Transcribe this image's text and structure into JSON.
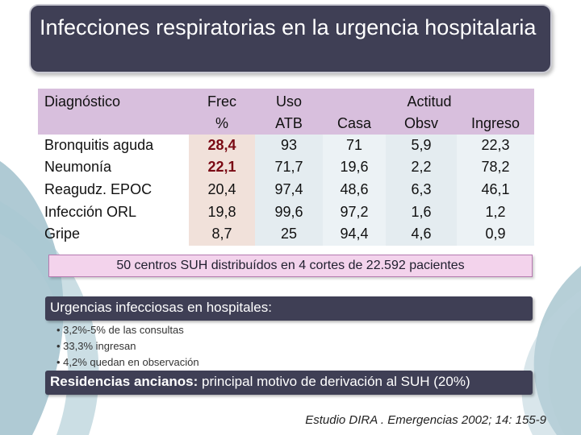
{
  "title": "Infecciones respiratorias en la urgencia hospitalaria",
  "table": {
    "headers": {
      "diagnostico": "Diagnóstico",
      "frec_1": "Frec",
      "frec_2": "%",
      "uso_1": "Uso",
      "uso_2": "ATB",
      "casa": "Casa",
      "actitud": "Actitud",
      "obsv": "Obsv",
      "ingreso": "Ingreso"
    },
    "rows": [
      {
        "label": "Bronquitis aguda",
        "frec": "28,4",
        "uso": "93",
        "casa": "71",
        "obsv": "5,9",
        "ingreso": "22,3"
      },
      {
        "label": "Neumonía",
        "frec": "22,1",
        "uso": "71,7",
        "casa": "19,6",
        "obsv": "2,2",
        "ingreso": "78,2"
      },
      {
        "label": "Reagudz. EPOC",
        "frec": "20,4",
        "uso": "97,4",
        "casa": "48,6",
        "obsv": "6,3",
        "ingreso": "46,1"
      },
      {
        "label": "Infección ORL",
        "frec": "19,8",
        "uso": "99,6",
        "casa": "97,2",
        "obsv": "1,6",
        "ingreso": "1,2"
      },
      {
        "label": "Gripe",
        "frec": "8,7",
        "uso": "25",
        "casa": "94,4",
        "obsv": "4,6",
        "ingreso": "0,9"
      }
    ]
  },
  "summary": "50 centros SUH distribuídos en 4 cortes de 22.592 pacientes",
  "section1": {
    "heading": "Urgencias infecciosas en hospitales:",
    "bullets": [
      "• 3,2%-5% de las consultas",
      "• 33,3% ingresan",
      "• 4,2% quedan en observación"
    ]
  },
  "section2": {
    "heading_bold": "Residencias ancianos:",
    "heading_rest": " principal motivo de derivación al SUH (20%)"
  },
  "citation": "Estudio DIRA . Emergencias 2002; 14: 155-9",
  "colors": {
    "title_bg": "#3f3f55",
    "header_bg": "#d8bfdd",
    "highlight_red": "#7a0a14",
    "summary_bg": "#f3d3ec",
    "swirl": "#7fa9b8"
  }
}
